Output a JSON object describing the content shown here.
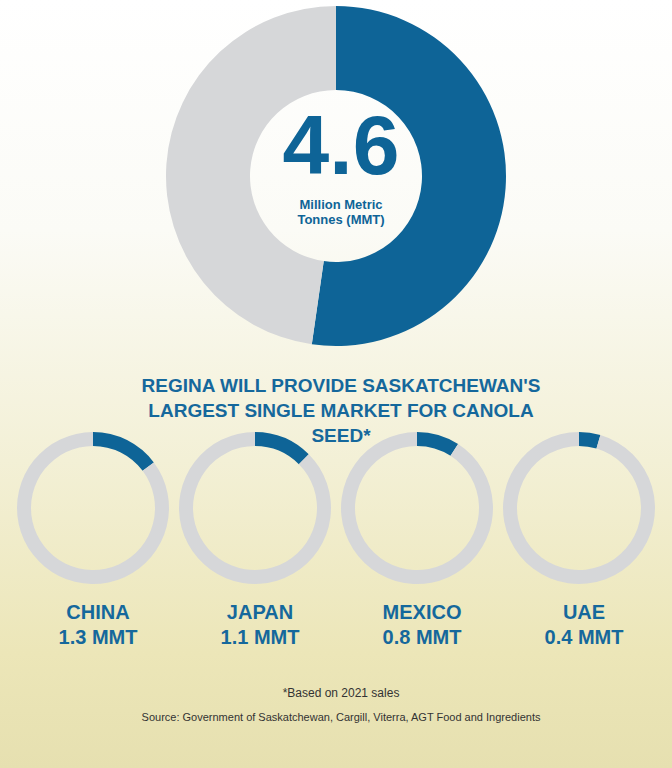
{
  "chart_data": {
    "type": "pie",
    "title": "REGINA WILL PROVIDE SASKATCHEWAN'S LARGEST SINGLE MARKET FOR CANOLA SEED*",
    "center_value": 4.6,
    "center_label": "Million Metric Tonnes (MMT)",
    "total": 8.8,
    "categories": [
      "CHINA",
      "JAPAN",
      "MEXICO",
      "UAE"
    ],
    "values": [
      1.3,
      1.1,
      0.8,
      0.4
    ],
    "value_labels": [
      "1.3 MMT",
      "1.1 MMT",
      "0.8 MMT",
      "0.4 MMT"
    ],
    "colors": [
      "#0e6497",
      "#d6d7d9"
    ],
    "footnote": "*Based on 2021 sales",
    "source": "Source: Government of Saskatchewan, Cargill, Viterra, AGT Food and Ingredients"
  }
}
